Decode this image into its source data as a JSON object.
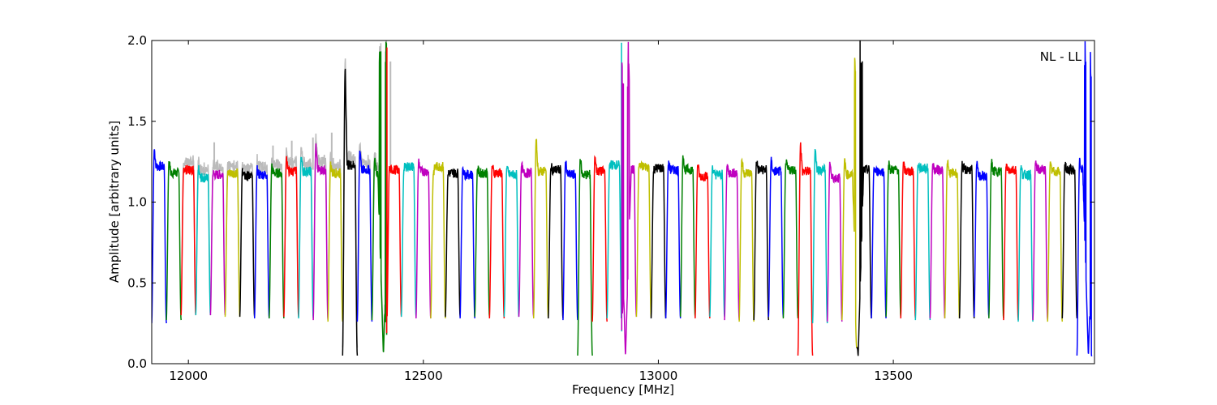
{
  "chart_data": {
    "type": "line",
    "title": "",
    "xlabel": "Frequency [MHz]",
    "ylabel": "Amplitude [arbitrary units]",
    "xlim": [
      11922,
      13928
    ],
    "ylim": [
      0.0,
      2.0
    ],
    "x_ticks": [
      12000,
      12500,
      13000,
      13500
    ],
    "x_tick_labels": [
      "12000",
      "12500",
      "13000",
      "13500"
    ],
    "y_ticks": [
      0.0,
      0.5,
      1.0,
      1.5,
      2.0
    ],
    "y_tick_labels": [
      "0.0",
      "0.5",
      "1.0",
      "1.5",
      "2.0"
    ],
    "annotation": "NL - LL",
    "annotation_position": "top-right",
    "grid": false,
    "colors": [
      "#0000ff",
      "#008000",
      "#ff0000",
      "#00bfbf",
      "#bf00bf",
      "#bfbf00",
      "#000000"
    ],
    "reference_color": "#bbbbbb",
    "channel_width_mhz": 31.25,
    "channel_start_mhz": 11922,
    "channel_count": 64,
    "channel_plateaus": [
      1.22,
      1.18,
      1.2,
      1.15,
      1.17,
      1.18,
      1.16,
      1.17,
      1.18,
      1.19,
      1.19,
      1.2,
      1.18,
      1.23,
      1.2,
      1.18,
      1.2,
      1.22,
      1.19,
      1.22,
      1.18,
      1.17,
      1.18,
      1.18,
      1.17,
      1.18,
      1.19,
      1.2,
      1.17,
      1.17,
      1.19,
      1.23,
      1.2,
      1.22,
      1.21,
      1.2,
      1.2,
      1.16,
      1.17,
      1.18,
      1.18,
      1.2,
      1.19,
      1.2,
      1.19,
      1.2,
      1.15,
      1.17,
      1.2,
      1.19,
      1.2,
      1.19,
      1.21,
      1.2,
      1.18,
      1.2,
      1.16,
      1.19,
      1.2,
      1.17,
      1.2,
      1.19,
      1.2,
      1.2
    ],
    "channel_peaks": [
      1.33,
      1.26,
      1.21,
      1.21,
      1.18,
      1.18,
      1.2,
      1.2,
      1.22,
      1.28,
      1.29,
      1.34,
      1.23,
      1.83,
      1.33,
      1.26,
      1.2,
      1.21,
      1.26,
      1.18,
      1.18,
      1.22,
      1.21,
      1.23,
      1.22,
      1.23,
      1.4,
      1.22,
      1.26,
      1.28,
      1.29,
      1.24,
      1.3,
      1.23,
      1.2,
      1.24,
      1.3,
      1.24,
      1.22,
      1.23,
      1.27,
      1.26,
      1.26,
      1.25,
      1.36,
      1.34,
      1.26,
      1.26,
      1.19,
      1.21,
      1.24,
      1.23,
      1.24,
      1.23,
      1.25,
      1.23,
      1.24,
      1.25,
      1.23,
      1.22,
      1.25,
      1.23,
      1.24,
      1.25
    ],
    "channel_minima": [
      0.25,
      0.27,
      0.3,
      0.3,
      0.3,
      0.29,
      0.29,
      0.28,
      0.28,
      0.29,
      0.28,
      0.27,
      0.26,
      0.05,
      0.26,
      0.27,
      0.29,
      0.29,
      0.28,
      0.28,
      0.29,
      0.28,
      0.29,
      0.28,
      0.29,
      0.29,
      0.28,
      0.28,
      0.27,
      0.05,
      0.26,
      0.28,
      0.29,
      0.29,
      0.28,
      0.28,
      0.29,
      0.28,
      0.29,
      0.27,
      0.26,
      0.27,
      0.29,
      0.28,
      0.05,
      0.25,
      0.26,
      0.27,
      0.28,
      0.28,
      0.29,
      0.28,
      0.27,
      0.28,
      0.28,
      0.28,
      0.29,
      0.28,
      0.27,
      0.26,
      0.27,
      0.26,
      0.28,
      0.05
    ],
    "spikes": [
      {
        "x": 12415,
        "peak": 2.0,
        "min": 0.05
      },
      {
        "x": 12930,
        "peak": 2.0,
        "min": 0.04
      },
      {
        "x": 13425,
        "peak": 2.0,
        "min": 0.04
      },
      {
        "x": 13915,
        "peak": 2.0,
        "min": 0.04
      }
    ],
    "reference_peaks": [
      {
        "x": 12055,
        "y": 1.37
      },
      {
        "x": 12180,
        "y": 1.35
      },
      {
        "x": 12220,
        "y": 1.38
      },
      {
        "x": 12265,
        "y": 1.4
      },
      {
        "x": 12305,
        "y": 1.43
      },
      {
        "x": 12430,
        "y": 1.87
      }
    ]
  }
}
